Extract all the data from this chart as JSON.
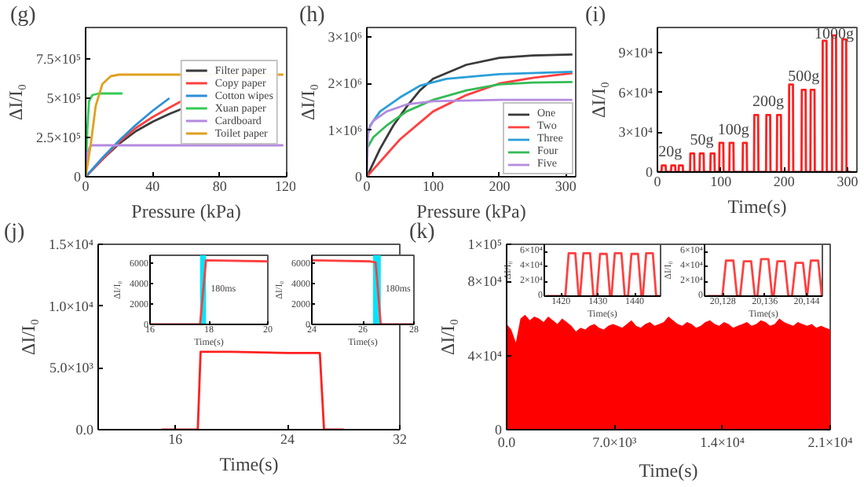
{
  "chart_data": [
    {
      "type": "line",
      "title": "(g)",
      "xlabel": "Pressure (kPa)",
      "ylabel": "ΔI/I₀",
      "xlim": [
        0,
        120
      ],
      "ylim": [
        0,
        950000
      ],
      "xticks": [
        0,
        40,
        80,
        120
      ],
      "yticks": [
        0,
        {
          "value": 250000,
          "label": "2.5×10⁵"
        },
        {
          "value": 500000,
          "label": "5×10⁵"
        },
        {
          "value": 750000,
          "label": "7.5×10⁵"
        }
      ],
      "legend": "right",
      "series": [
        {
          "name": "Filter paper",
          "color": "#3a3a3a",
          "x": [
            0,
            10,
            20,
            30,
            40,
            50,
            57
          ],
          "values": [
            0,
            110000,
            210000,
            290000,
            350000,
            400000,
            430000
          ]
        },
        {
          "name": "Copy paper",
          "color": "#ff4040",
          "x": [
            0,
            10,
            20,
            30,
            40,
            50,
            57
          ],
          "values": [
            0,
            110000,
            220000,
            310000,
            380000,
            440000,
            480000
          ]
        },
        {
          "name": "Cotton wipes",
          "color": "#2a8fd8",
          "x": [
            0,
            10,
            20,
            30,
            40,
            50
          ],
          "values": [
            0,
            120000,
            230000,
            330000,
            420000,
            500000
          ]
        },
        {
          "name": "Xuan paper",
          "color": "#33cc55",
          "x": [
            0,
            1,
            2,
            4,
            8,
            22
          ],
          "values": [
            0,
            300000,
            480000,
            520000,
            530000,
            530000
          ]
        },
        {
          "name": "Cardboard",
          "color": "#b58ae0",
          "x": [
            0,
            1,
            3,
            5,
            118
          ],
          "values": [
            0,
            150000,
            200000,
            200000,
            200000
          ]
        },
        {
          "name": "Toilet paper",
          "color": "#e0a020",
          "x": [
            0,
            3,
            6,
            10,
            15,
            20,
            118
          ],
          "values": [
            0,
            200000,
            450000,
            590000,
            640000,
            650000,
            650000
          ]
        }
      ]
    },
    {
      "type": "line",
      "title": "(h)",
      "xlabel": "Pressure (kPa)",
      "ylabel": "ΔI/I₀",
      "xlim": [
        0,
        315
      ],
      "ylim": [
        0,
        3200000
      ],
      "xticks": [
        0,
        100,
        200,
        300
      ],
      "yticks": [
        0,
        {
          "value": 1000000,
          "label": "1×10⁶"
        },
        {
          "value": 2000000,
          "label": "2×10⁶"
        },
        {
          "value": 3000000,
          "label": "3×10⁶"
        }
      ],
      "legend": "bottom right",
      "series": [
        {
          "name": "One",
          "color": "#3a3a3a",
          "x": [
            0,
            20,
            40,
            60,
            80,
            100,
            150,
            200,
            250,
            310
          ],
          "values": [
            0,
            600000,
            1100000,
            1500000,
            1850000,
            2100000,
            2400000,
            2550000,
            2600000,
            2620000
          ]
        },
        {
          "name": "Two",
          "color": "#ff4040",
          "x": [
            0,
            25,
            50,
            75,
            100,
            150,
            200,
            250,
            310
          ],
          "values": [
            0,
            400000,
            800000,
            1100000,
            1400000,
            1750000,
            2000000,
            2120000,
            2220000
          ]
        },
        {
          "name": "Three",
          "color": "#2a9fd8",
          "x": [
            0,
            5,
            20,
            50,
            80,
            120,
            200,
            310
          ],
          "values": [
            800000,
            1100000,
            1400000,
            1700000,
            1950000,
            2100000,
            2200000,
            2250000
          ]
        },
        {
          "name": "Four",
          "color": "#33bb55",
          "x": [
            0,
            10,
            30,
            60,
            100,
            150,
            200,
            250,
            310
          ],
          "values": [
            600000,
            850000,
            1100000,
            1400000,
            1650000,
            1850000,
            1980000,
            2020000,
            2030000
          ]
        },
        {
          "name": "Five",
          "color": "#b58ae0",
          "x": [
            0,
            2,
            10,
            30,
            60,
            100,
            200,
            310
          ],
          "values": [
            0,
            1000000,
            1200000,
            1400000,
            1550000,
            1620000,
            1650000,
            1650000
          ]
        }
      ]
    },
    {
      "type": "line",
      "title": "(i)",
      "xlabel": "Time(s)",
      "ylabel": "ΔI/I₀",
      "xlim": [
        0,
        315
      ],
      "ylim": [
        0,
        109000
      ],
      "xticks": [
        0,
        100,
        200,
        300
      ],
      "yticks": [
        0,
        {
          "value": 30000,
          "label": "3×10⁴"
        },
        {
          "value": 60000,
          "label": "6×10⁴"
        },
        {
          "value": 90000,
          "label": "9×10⁴"
        }
      ],
      "annotations": [
        {
          "text": "20g",
          "x": 20,
          "y": 8000
        },
        {
          "text": "50g",
          "x": 70,
          "y": 17000
        },
        {
          "text": "100g",
          "x": 120,
          "y": 25000
        },
        {
          "text": "200g",
          "x": 175,
          "y": 46000
        },
        {
          "text": "500g",
          "x": 231,
          "y": 65000
        },
        {
          "text": "1000g",
          "x": 279,
          "y": 97000
        }
      ],
      "series": [
        {
          "color": "#ff2020",
          "x": [
            0,
            6.5,
            7,
            13,
            13.5,
            21.5,
            22,
            28,
            28.5,
            33.5,
            34,
            40,
            40.5,
            51.5,
            52,
            58,
            58.5,
            66.5,
            67,
            73,
            73.5,
            83.5,
            84,
            90,
            90.5,
            97.5,
            98,
            104,
            104.5,
            113.5,
            114,
            120,
            120.5,
            134.5,
            135,
            141,
            141.5,
            152.5,
            153,
            159,
            159.5,
            171.5,
            172,
            178,
            178.5,
            188.5,
            189,
            195,
            195.5,
            207.5,
            208,
            214,
            214.5,
            227.5,
            228,
            234,
            234.5,
            241.5,
            242,
            248,
            248.5,
            260.5,
            261,
            267,
            267.5,
            275.5,
            276,
            282,
            282.5,
            291.5,
            292,
            298,
            298.5,
            305
          ],
          "values": [
            0,
            0,
            5000,
            5000,
            0,
            0,
            5000,
            5000,
            0,
            0,
            5000,
            5000,
            0,
            0,
            14000,
            14000,
            0,
            0,
            14000,
            14000,
            0,
            0,
            14000,
            14000,
            0,
            0,
            22000,
            22000,
            0,
            0,
            22000,
            22000,
            0,
            0,
            22000,
            22000,
            0,
            0,
            43000,
            43000,
            0,
            0,
            43000,
            43000,
            0,
            0,
            43000,
            43000,
            0,
            0,
            66000,
            66000,
            0,
            0,
            62000,
            62000,
            0,
            0,
            62000,
            62000,
            0,
            0,
            99000,
            99000,
            0,
            0,
            103000,
            103000,
            0,
            0,
            100000,
            100000,
            0,
            0
          ]
        }
      ]
    },
    {
      "type": "line",
      "title": "(j)",
      "xlabel": "Time(s)",
      "ylabel": "ΔI/I₀",
      "xlim": [
        10.5,
        32
      ],
      "ylim": [
        0,
        15000
      ],
      "xticks": [
        16,
        24,
        32
      ],
      "yticks": [
        {
          "value": 0,
          "label": "0.0"
        },
        {
          "value": 5000,
          "label": "5.0×10³"
        },
        {
          "value": 10000,
          "label": "1.0×10⁴"
        },
        {
          "value": 15000,
          "label": "1.5×10⁴"
        }
      ],
      "series": [
        {
          "color": "#ff2020",
          "x": [
            15,
            17.6,
            17.8,
            20,
            24,
            26.3,
            26.6,
            28
          ],
          "values": [
            0,
            0,
            6300,
            6300,
            6200,
            6200,
            0,
            0
          ]
        }
      ]
    },
    {
      "type": "line",
      "xlabel": "Time(s)",
      "ylabel": "ΔI/I₀",
      "xlim": [
        16,
        20
      ],
      "ylim": [
        0,
        6800
      ],
      "xticks": [
        16,
        18,
        20
      ],
      "yticks": [
        0,
        2000,
        4000,
        6000
      ],
      "bands": [
        {
          "axis": "x",
          "from": 17.7,
          "to": 17.9,
          "label": "180ms",
          "color": "#00e5ff"
        }
      ],
      "series": [
        {
          "color": "#ff4040",
          "x": [
            16,
            17.7,
            17.9,
            20
          ],
          "values": [
            0,
            0,
            6300,
            6200
          ]
        }
      ]
    },
    {
      "type": "line",
      "xlabel": "Time(s)",
      "ylabel": "ΔI/I₀",
      "xlim": [
        24,
        28
      ],
      "ylim": [
        0,
        6800
      ],
      "xticks": [
        24,
        26,
        28
      ],
      "yticks": [
        0,
        2000,
        4000,
        6000
      ],
      "bands": [
        {
          "axis": "x",
          "from": 26.4,
          "to": 26.7,
          "label": "180ms",
          "color": "#00e5ff"
        }
      ],
      "series": [
        {
          "color": "#ff4040",
          "x": [
            24,
            26.3,
            26.5,
            26.7,
            28
          ],
          "values": [
            6300,
            6200,
            6100,
            0,
            0
          ]
        }
      ]
    },
    {
      "type": "area",
      "title": "(k)",
      "xlabel": "Time(s)",
      "ylabel": "ΔI/I₀",
      "xlim": [
        0,
        21000
      ],
      "ylim": [
        0,
        100000
      ],
      "xticks": [
        {
          "value": 0,
          "label": "0.0"
        },
        {
          "value": 7000,
          "label": "7.0×10³"
        },
        {
          "value": 14000,
          "label": "1.4×10⁴"
        },
        {
          "value": 21000,
          "label": "2.1×10⁴"
        }
      ],
      "yticks": [
        0,
        {
          "value": 40000,
          "label": "4×10⁴"
        },
        {
          "value": 80000,
          "label": "8×10⁴"
        },
        {
          "value": 100000,
          "label": "1×10⁵"
        }
      ],
      "series": [
        {
          "color": "#ff0000",
          "x": [
            0,
            300,
            600,
            900,
            1200,
            1500,
            1800,
            2100,
            2400,
            2700,
            3000,
            3300,
            3600,
            3900,
            4200,
            4500,
            4800,
            5100,
            5400,
            5700,
            6000,
            6300,
            6600,
            6900,
            7200,
            7500,
            7800,
            8100,
            8400,
            8700,
            9000,
            9300,
            9600,
            9900,
            10200,
            10500,
            10800,
            11100,
            11400,
            11700,
            12000,
            12300,
            12600,
            12900,
            13200,
            13500,
            13800,
            14100,
            14400,
            14700,
            15000,
            15300,
            15600,
            15900,
            16200,
            16500,
            16800,
            17100,
            17400,
            17700,
            18000,
            18300,
            18600,
            18900,
            19200,
            19500,
            19800,
            20100,
            20400,
            20700,
            21000
          ],
          "values": [
            57000,
            54000,
            47000,
            60000,
            62000,
            59000,
            61000,
            60000,
            58000,
            61000,
            59000,
            57000,
            60000,
            58000,
            56000,
            53000,
            55000,
            54000,
            56000,
            57000,
            55000,
            54000,
            56000,
            57000,
            56000,
            55000,
            57000,
            59000,
            56000,
            55000,
            57000,
            58000,
            56000,
            57000,
            58000,
            61000,
            59000,
            57000,
            56000,
            58000,
            57000,
            55000,
            56000,
            58000,
            59000,
            57000,
            56000,
            58000,
            57000,
            55000,
            56000,
            57000,
            58000,
            56000,
            57000,
            59000,
            58000,
            56000,
            57000,
            60000,
            58000,
            57000,
            56000,
            58000,
            57000,
            56000,
            57000,
            55000,
            56000,
            55000,
            54000
          ]
        }
      ]
    },
    {
      "type": "line",
      "xlabel": "Time(s)",
      "ylabel": "ΔI/I₀",
      "xlim": [
        1415.5,
        1447
      ],
      "ylim": [
        0,
        70000
      ],
      "xticks": [
        1420,
        1430,
        1440
      ],
      "yticks": [
        0,
        {
          "value": 20000,
          "label": "2×10⁴"
        },
        {
          "value": 40000,
          "label": "4×10⁴"
        },
        {
          "value": 60000,
          "label": "6×10⁴"
        }
      ],
      "series": [
        {
          "color": "#ff4040",
          "x": [
            1416,
            1421.2,
            1422.1,
            1423.9,
            1424.8,
            1425.2,
            1426.1,
            1427.9,
            1428.8,
            1429.7,
            1430.6,
            1432.4,
            1433.3,
            1433.7,
            1434.6,
            1436.4,
            1437.3,
            1438.2,
            1439.1,
            1440.9,
            1441.8,
            1442.2,
            1443.1,
            1444.9,
            1445.8,
            1447
          ],
          "values": [
            0,
            0,
            58000,
            58000,
            0,
            0,
            58000,
            58000,
            0,
            0,
            57000,
            57000,
            0,
            0,
            58000,
            58000,
            0,
            0,
            57000,
            57000,
            0,
            0,
            58000,
            58000,
            0,
            0
          ]
        }
      ]
    },
    {
      "type": "line",
      "xlabel": "Time(s)",
      "ylabel": "ΔI/I₀",
      "xlim": [
        20124.5,
        20147
      ],
      "ylim": [
        0,
        70000
      ],
      "xticks": [
        {
          "value": 20128,
          "label": "20,128"
        },
        {
          "value": 20136,
          "label": "20,136"
        },
        {
          "value": 20144,
          "label": "20,144"
        }
      ],
      "yticks": [
        0,
        {
          "value": 20000,
          "label": "2×10⁴"
        },
        {
          "value": 40000,
          "label": "4×10⁴"
        },
        {
          "value": 60000,
          "label": "6×10⁴"
        }
      ],
      "series": [
        {
          "color": "#ff4040",
          "x": [
            20125,
            20127.9,
            20128.6,
            20130.0,
            20130.7,
            20131.3,
            20132.0,
            20133.4,
            20134.1,
            20134.6,
            20135.3,
            20136.7,
            20137.4,
            20137.7,
            20138.4,
            20139.8,
            20140.5,
            20141.2,
            20141.9,
            20143.3,
            20144.0,
            20144.1,
            20144.8,
            20146.2,
            20146.9
          ],
          "values": [
            0,
            0,
            48000,
            48000,
            0,
            0,
            47000,
            47000,
            0,
            0,
            50000,
            50000,
            0,
            0,
            47000,
            47000,
            0,
            0,
            45000,
            45000,
            0,
            0,
            48000,
            48000,
            0
          ]
        }
      ]
    }
  ]
}
